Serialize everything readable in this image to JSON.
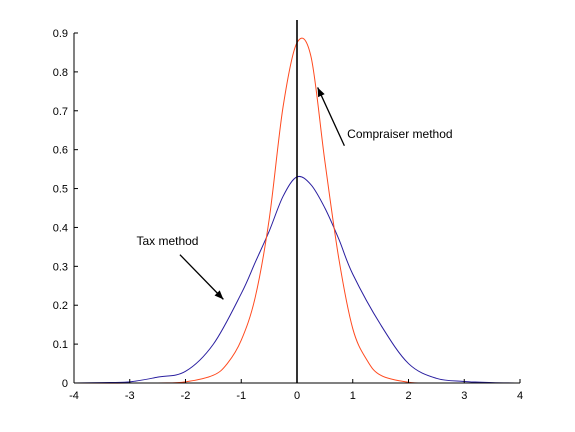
{
  "chart_data": {
    "type": "line",
    "title": "",
    "xlabel": "",
    "ylabel": "",
    "xlim": [
      -4,
      4
    ],
    "ylim": [
      0,
      0.9
    ],
    "x_ticks": [
      -4,
      -3,
      -2,
      -1,
      0,
      1,
      2,
      3,
      4
    ],
    "y_ticks": [
      0,
      0.1,
      0.2,
      0.3,
      0.4,
      0.5,
      0.6,
      0.7,
      0.8,
      0.9
    ],
    "grid": false,
    "colors": {
      "tax_curve": "#2a1fa0",
      "appraiser_curve": "#ff4a1f",
      "axis": "#000000",
      "vertical_line": "#000000"
    },
    "vertical_line_x": 0,
    "series": [
      {
        "key": "tax",
        "x": [
          -4,
          -3.5,
          -3,
          -2.5,
          -2,
          -1.5,
          -1,
          -0.75,
          -0.5,
          -0.25,
          0,
          0.25,
          0.5,
          0.75,
          1,
          1.5,
          2,
          2.5,
          3,
          3.5,
          4
        ],
        "y": [
          0,
          0.001,
          0.003,
          0.015,
          0.03,
          0.1,
          0.23,
          0.31,
          0.39,
          0.48,
          0.53,
          0.51,
          0.45,
          0.37,
          0.28,
          0.15,
          0.05,
          0.012,
          0.004,
          0.001,
          0
        ]
      },
      {
        "key": "appraiser",
        "x": [
          -4,
          -2.5,
          -2,
          -1.5,
          -1.25,
          -1,
          -0.75,
          -0.5,
          -0.25,
          0,
          0.25,
          0.5,
          0.75,
          1,
          1.25,
          1.5,
          2,
          2.5,
          4
        ],
        "y": [
          0,
          0.0,
          0.003,
          0.02,
          0.05,
          0.11,
          0.22,
          0.42,
          0.71,
          0.875,
          0.84,
          0.57,
          0.32,
          0.14,
          0.06,
          0.02,
          0.002,
          0.0,
          0
        ]
      }
    ],
    "annotations": [
      {
        "key": "appraiser_label",
        "text": "Compraiser method",
        "arrow_from": [
          0.85,
          0.61
        ],
        "arrow_to": [
          0.37,
          0.76
        ],
        "text_at": [
          0.9,
          0.63
        ]
      },
      {
        "key": "tax_label",
        "text": "Tax method",
        "arrow_from": [
          -2.1,
          0.33
        ],
        "arrow_to": [
          -1.32,
          0.215
        ],
        "text_at": [
          -2.88,
          0.355
        ]
      }
    ]
  }
}
